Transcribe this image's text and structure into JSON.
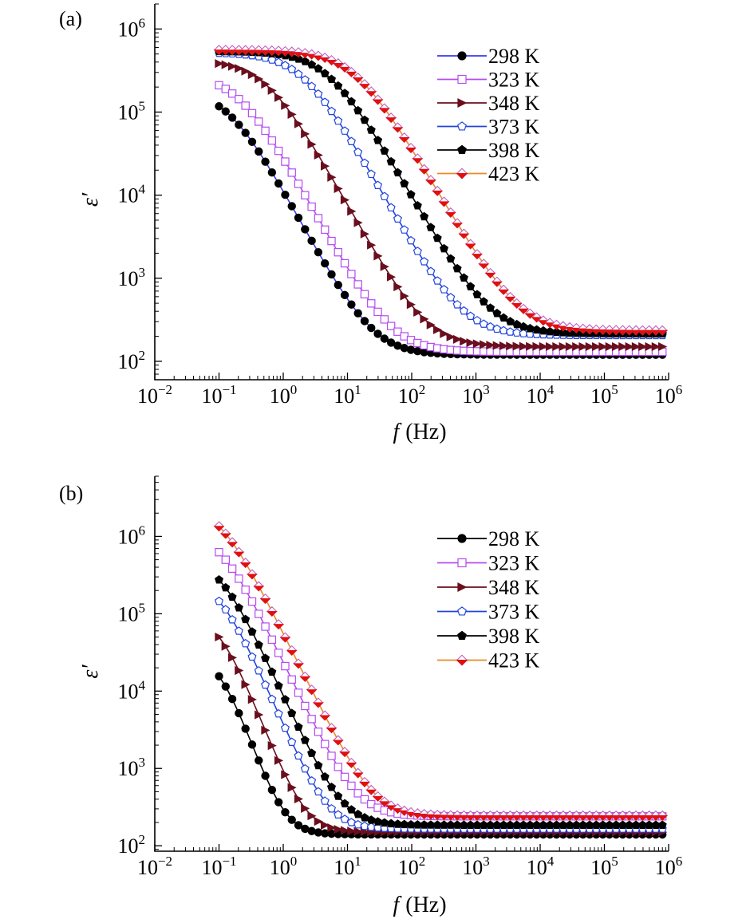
{
  "chart_data": [
    {
      "panel_label": "(a)",
      "type": "line",
      "xscale": "log",
      "yscale": "log",
      "xlabel_symbol": "f",
      "xlabel_unit": "(Hz)",
      "ylabel": "ε′",
      "xlim": [
        0.01,
        1000000
      ],
      "ylim": [
        60,
        2000000
      ],
      "x_ticks": [
        {
          "base": "10",
          "exp": "−2"
        },
        {
          "base": "10",
          "exp": "−1"
        },
        {
          "base": "10",
          "exp": "0"
        },
        {
          "base": "10",
          "exp": "1"
        },
        {
          "base": "10",
          "exp": "2"
        },
        {
          "base": "10",
          "exp": "3"
        },
        {
          "base": "10",
          "exp": "4"
        },
        {
          "base": "10",
          "exp": "5"
        },
        {
          "base": "10",
          "exp": "6"
        }
      ],
      "y_ticks": [
        {
          "base": "10",
          "exp": "2"
        },
        {
          "base": "10",
          "exp": "3"
        },
        {
          "base": "10",
          "exp": "4"
        },
        {
          "base": "10",
          "exp": "5"
        },
        {
          "base": "10",
          "exp": "6"
        }
      ],
      "legend_position": "top-right",
      "series": [
        {
          "name": "298 K",
          "color": "#000000",
          "line_color": "#3a3af0",
          "marker": "circle",
          "marker_fill": "#000000",
          "marker_stroke": "#000000",
          "eps_high": 120,
          "eps_low": 190000,
          "fc": 0.14,
          "n": 1.42
        },
        {
          "name": "323 K",
          "color": "#b44cf0",
          "line_color": "#b44cf0",
          "marker": "square",
          "marker_fill": "#ffffff",
          "marker_stroke": "#b44cf0",
          "eps_high": 130,
          "eps_low": 290000,
          "fc": 0.2,
          "n": 1.4
        },
        {
          "name": "348 K",
          "color": "#6a0f1e",
          "line_color": "#6a0f1e",
          "marker": "triangle-right",
          "marker_fill": "#6a0f1e",
          "marker_stroke": "#6a0f1e",
          "eps_high": 150,
          "eps_low": 420000,
          "fc": 0.55,
          "n": 1.38
        },
        {
          "name": "373 K",
          "color": "#2244dd",
          "line_color": "#2244dd",
          "marker": "pentagon",
          "marker_fill": "#ffffff",
          "marker_stroke": "#2244dd",
          "eps_high": 205,
          "eps_low": 520000,
          "fc": 2.0,
          "n": 1.36
        },
        {
          "name": "398 K",
          "color": "#000000",
          "line_color": "#000000",
          "marker": "pentagon",
          "marker_fill": "#000000",
          "marker_stroke": "#000000",
          "eps_high": 215,
          "eps_low": 540000,
          "fc": 5.0,
          "n": 1.34
        },
        {
          "name": "423 K",
          "color": "#e84a1a",
          "line_color": "#e88a2a",
          "marker": "diamond",
          "marker_fill": "#e01010",
          "marker_stroke": "#e01010",
          "eps_high": 235,
          "eps_low": 560000,
          "fc": 13.0,
          "n": 1.32
        }
      ]
    },
    {
      "panel_label": "(b)",
      "type": "line",
      "xscale": "log",
      "yscale": "log",
      "xlabel_symbol": "f",
      "xlabel_unit": "(Hz)",
      "ylabel": "ε′",
      "xlim": [
        0.01,
        1000000
      ],
      "ylim": [
        85,
        6000000
      ],
      "x_ticks": [
        {
          "base": "10",
          "exp": "−2"
        },
        {
          "base": "10",
          "exp": "−1"
        },
        {
          "base": "10",
          "exp": "0"
        },
        {
          "base": "10",
          "exp": "1"
        },
        {
          "base": "10",
          "exp": "2"
        },
        {
          "base": "10",
          "exp": "3"
        },
        {
          "base": "10",
          "exp": "4"
        },
        {
          "base": "10",
          "exp": "5"
        },
        {
          "base": "10",
          "exp": "6"
        }
      ],
      "y_ticks": [
        {
          "base": "10",
          "exp": "2"
        },
        {
          "base": "10",
          "exp": "3"
        },
        {
          "base": "10",
          "exp": "4"
        },
        {
          "base": "10",
          "exp": "5"
        },
        {
          "base": "10",
          "exp": "6"
        }
      ],
      "legend_position": "top-right",
      "series": [
        {
          "name": "298 K",
          "color": "#000000",
          "line_color": "#000000",
          "marker": "circle",
          "marker_fill": "#000000",
          "marker_stroke": "#000000",
          "eps_high": 140,
          "eps_low": 31000,
          "fc": 0.1,
          "n": 2.3
        },
        {
          "name": "323 K",
          "color": "#b44cf0",
          "line_color": "#b44cf0",
          "marker": "square",
          "marker_fill": "#ffffff",
          "marker_stroke": "#b44cf0",
          "eps_high": 240,
          "eps_low": 1250000,
          "fc": 0.1,
          "n": 1.72
        },
        {
          "name": "348 K",
          "color": "#6a0f1e",
          "line_color": "#6a0f1e",
          "marker": "triangle-right",
          "marker_fill": "#6a0f1e",
          "marker_stroke": "#6a0f1e",
          "eps_high": 150,
          "eps_low": 100000,
          "fc": 0.1,
          "n": 2.1
        },
        {
          "name": "373 K",
          "color": "#2244dd",
          "line_color": "#2244dd",
          "marker": "pentagon",
          "marker_fill": "#ffffff",
          "marker_stroke": "#2244dd",
          "eps_high": 165,
          "eps_low": 290000,
          "fc": 0.1,
          "n": 1.9
        },
        {
          "name": "398 K",
          "color": "#000000",
          "line_color": "#000000",
          "marker": "pentagon",
          "marker_fill": "#000000",
          "marker_stroke": "#000000",
          "eps_high": 185,
          "eps_low": 550000,
          "fc": 0.1,
          "n": 1.8
        },
        {
          "name": "423 K",
          "color": "#e84a1a",
          "line_color": "#e88a2a",
          "marker": "diamond",
          "marker_fill": "#e01010",
          "marker_stroke": "#e01010",
          "eps_high": 245,
          "eps_low": 2700000,
          "fc": 0.1,
          "n": 1.68
        }
      ]
    }
  ]
}
